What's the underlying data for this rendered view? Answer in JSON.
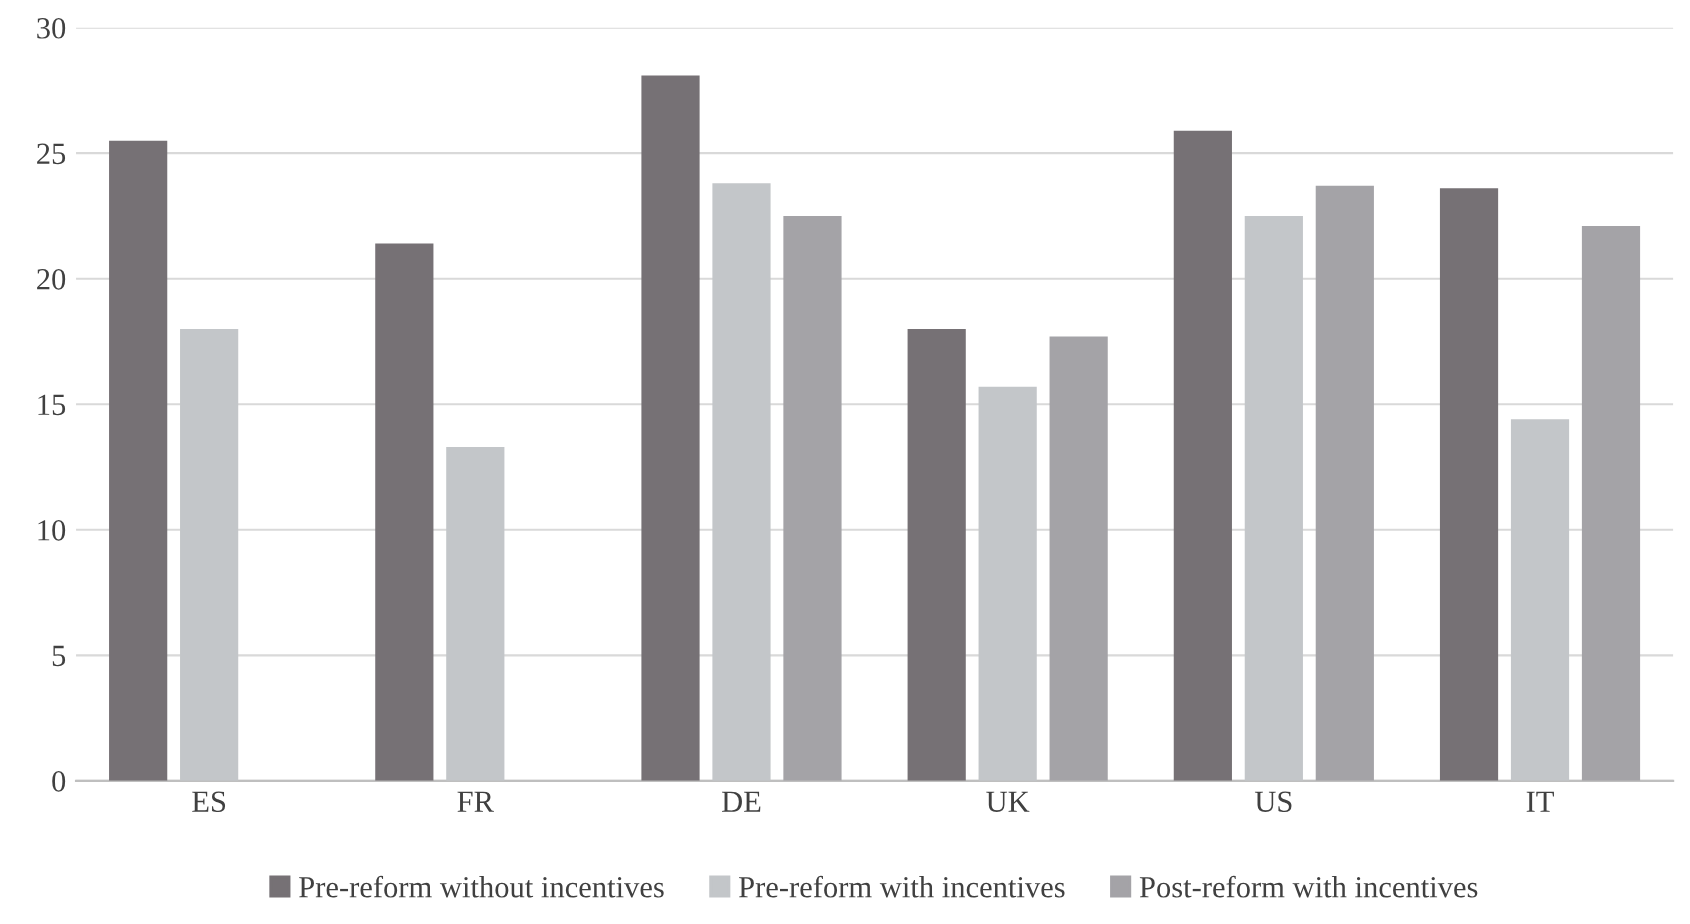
{
  "chart_data": {
    "type": "bar",
    "categories": [
      "ES",
      "FR",
      "DE",
      "UK",
      "US",
      "IT"
    ],
    "series": [
      {
        "name": "Pre-reform without incentives",
        "color": "#767175",
        "values": [
          25.5,
          21.4,
          28.1,
          18.0,
          25.9,
          23.6
        ]
      },
      {
        "name": "Pre-reform with incentives",
        "color": "#c3c6c9",
        "values": [
          18.0,
          13.3,
          23.8,
          15.7,
          22.5,
          14.4
        ]
      },
      {
        "name": "Post-reform with incentives",
        "color": "#a4a3a7",
        "values": [
          null,
          null,
          22.5,
          17.7,
          23.7,
          22.1
        ]
      }
    ],
    "ylim": [
      0,
      30
    ],
    "yticks": [
      0,
      5,
      10,
      15,
      20,
      25,
      30
    ],
    "grid": "y",
    "legend": "bottom"
  }
}
